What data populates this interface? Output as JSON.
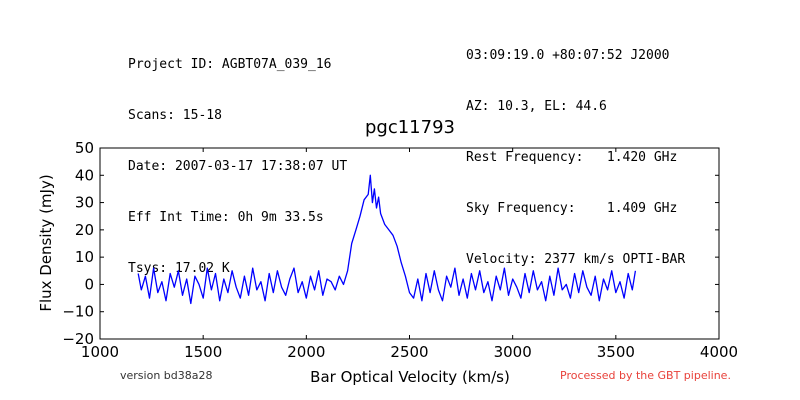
{
  "header": {
    "left": [
      "Project ID: AGBT07A_039_16",
      "Scans: 15-18",
      "Date: 2007-03-17 17:38:07 UT",
      "Eff Int Time: 0h 9m 33.5s",
      "Tsys: 17.02 K"
    ],
    "right": [
      "03:09:19.0 +80:07:52 J2000",
      "AZ: 10.3, EL: 44.6",
      "Rest Frequency:   1.420 GHz",
      "Sky Frequency:    1.409 GHz",
      "Velocity: 2377 km/s OPTI-BAR"
    ]
  },
  "footer": {
    "version": "version bd38a28",
    "processed": "Processed by the GBT pipeline."
  },
  "chart_data": {
    "type": "line",
    "title": "pgc11793",
    "xlabel": "Bar Optical Velocity (km/s)",
    "ylabel": "Flux Density (mJy)",
    "xlim": [
      1000,
      4000
    ],
    "ylim": [
      -20,
      50
    ],
    "xticks": [
      1000,
      1500,
      2000,
      2500,
      3000,
      3500,
      4000
    ],
    "yticks": [
      -20,
      -10,
      0,
      10,
      20,
      30,
      40,
      50
    ],
    "grid": false,
    "color": "#0000ff",
    "series": [
      {
        "x": [
          1185,
          1200,
          1220,
          1240,
          1260,
          1280,
          1300,
          1320,
          1340,
          1360,
          1380,
          1400,
          1420,
          1440,
          1460,
          1480,
          1500,
          1520,
          1540,
          1560,
          1580,
          1600,
          1620,
          1640,
          1660,
          1680,
          1700,
          1720,
          1740,
          1760,
          1780,
          1800,
          1820,
          1840,
          1860,
          1880,
          1900,
          1920,
          1940,
          1960,
          1980,
          2000,
          2020,
          2040,
          2060,
          2080,
          2100,
          2120,
          2140,
          2160,
          2180,
          2200,
          2220,
          2240,
          2260,
          2280,
          2300,
          2310,
          2320,
          2330,
          2340,
          2350,
          2360,
          2380,
          2400,
          2420,
          2440,
          2460,
          2480,
          2500,
          2520,
          2540,
          2560,
          2580,
          2600,
          2620,
          2640,
          2660,
          2680,
          2700,
          2720,
          2740,
          2760,
          2780,
          2800,
          2820,
          2840,
          2860,
          2880,
          2900,
          2920,
          2940,
          2960,
          2980,
          3000,
          3020,
          3040,
          3060,
          3080,
          3100,
          3120,
          3140,
          3160,
          3180,
          3200,
          3220,
          3240,
          3260,
          3280,
          3300,
          3320,
          3340,
          3360,
          3380,
          3400,
          3420,
          3440,
          3460,
          3480,
          3500,
          3520,
          3540,
          3560,
          3580,
          3595
        ],
        "y": [
          4,
          -2,
          3,
          -5,
          6,
          -3,
          1,
          -6,
          4,
          -1,
          5,
          -4,
          2,
          -7,
          3,
          0,
          -5,
          6,
          -2,
          4,
          -6,
          2,
          -3,
          5,
          -1,
          -5,
          3,
          -4,
          6,
          -2,
          1,
          -6,
          4,
          -3,
          5,
          -1,
          -4,
          2,
          6,
          -3,
          1,
          -5,
          3,
          -2,
          5,
          -4,
          2,
          1,
          -2,
          3,
          0,
          5,
          15,
          20,
          25,
          31,
          33,
          40,
          30,
          35,
          28,
          32,
          26,
          22,
          20,
          18,
          14,
          8,
          3,
          -3,
          -5,
          2,
          -6,
          4,
          -3,
          5,
          -2,
          -6,
          3,
          -1,
          6,
          -4,
          2,
          -5,
          4,
          -2,
          5,
          -3,
          1,
          -6,
          3,
          -2,
          6,
          -4,
          2,
          -1,
          -5,
          4,
          -3,
          5,
          -2,
          1,
          -6,
          3,
          -4,
          6,
          -2,
          0,
          -5,
          4,
          -3,
          5,
          -1,
          -4,
          3,
          -6,
          2,
          -2,
          5,
          -3,
          1,
          -5,
          4,
          -2,
          5
        ]
      }
    ]
  }
}
